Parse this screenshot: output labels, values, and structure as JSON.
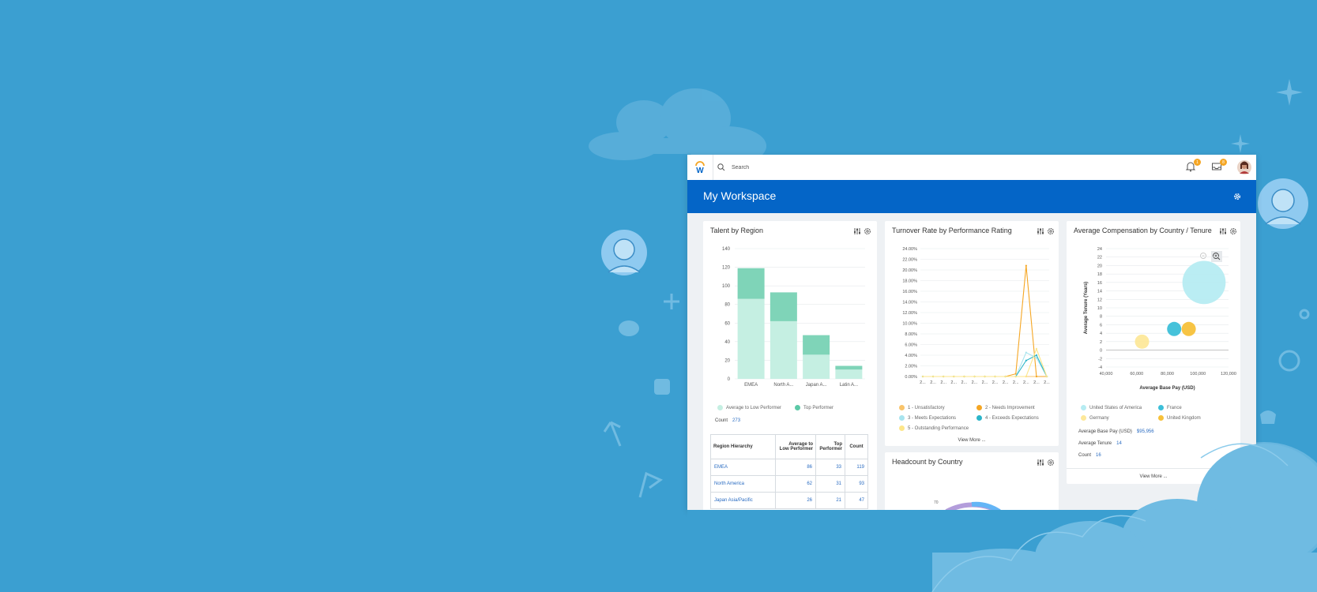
{
  "topbar": {
    "search_placeholder": "Search",
    "notifications_count": "1",
    "inbox_count": "8"
  },
  "header": {
    "title": "My Workspace"
  },
  "talent_card": {
    "title": "Talent by Region",
    "legend": [
      "Average to Low Performer",
      "Top Performer"
    ],
    "count_label": "Count",
    "count_value": "273",
    "table": {
      "headers": [
        "Region Hierarchy",
        "Average to Low Performer",
        "Top Performer",
        "Count"
      ],
      "rows": [
        [
          "EMEA",
          "86",
          "33",
          "119"
        ],
        [
          "North America",
          "62",
          "31",
          "93"
        ],
        [
          "Japan Asia/Pacific",
          "26",
          "21",
          "47"
        ]
      ]
    }
  },
  "turnover_card": {
    "title": "Turnover Rate by Performance Rating",
    "legend": [
      "1 - Unsatisfactory",
      "2 - Needs Improvement",
      "3 - Meets Expectations",
      "4 - Exceeds Expectations",
      "5 - Outstanding Performance"
    ],
    "view_more": "View More ..."
  },
  "headcount_card": {
    "title": "Headcount by Country",
    "tick": "70"
  },
  "comp_card": {
    "title": "Average Compensation by Country / Tenure",
    "legend": [
      "United States of America",
      "France",
      "Germany",
      "United Kingdom"
    ],
    "stats": [
      {
        "label": "Average Base Pay (USD)",
        "value": "$95,956"
      },
      {
        "label": "Average Tenure",
        "value": "14"
      },
      {
        "label": "Count",
        "value": "16"
      }
    ],
    "view_more": "View More ..."
  },
  "colors": {
    "background": "#3b9fd1",
    "header": "#0465c7",
    "low_performer": "#c5efe2",
    "top_performer": "#7fd4b8",
    "usa": "#b6ecf2",
    "france": "#3cbfd8",
    "germany": "#fde89a",
    "uk": "#f7c13a"
  },
  "chart_data": [
    {
      "type": "bar",
      "title": "Talent by Region",
      "categories": [
        "EMEA",
        "North A...",
        "Japan A...",
        "Latin A..."
      ],
      "series": [
        {
          "name": "Average to Low Performer",
          "values": [
            86,
            62,
            26,
            10
          ]
        },
        {
          "name": "Top Performer",
          "values": [
            33,
            31,
            21,
            4
          ]
        }
      ],
      "stacked": true,
      "ylim": [
        0,
        140
      ],
      "yticks": [
        "0",
        "20",
        "40",
        "60",
        "80",
        "100",
        "120",
        "140"
      ]
    },
    {
      "type": "line",
      "title": "Turnover Rate by Performance Rating",
      "x": [
        "2...",
        "2...",
        "2...",
        "2...",
        "2...",
        "2...",
        "2...",
        "2...",
        "2...",
        "2...",
        "2...",
        "2...",
        "2..."
      ],
      "yticks": [
        "0.00%",
        "2.00%",
        "4.00%",
        "6.00%",
        "8.00%",
        "10.00%",
        "12.00%",
        "14.00%",
        "16.00%",
        "18.00%",
        "20.00%",
        "22.00%",
        "24.00%"
      ],
      "ylim": [
        0,
        24
      ],
      "series": [
        {
          "name": "1 - Unsatisfactory",
          "color": "#f9c46b",
          "values": [
            0,
            0,
            0,
            0,
            0,
            0,
            0,
            0,
            0,
            0,
            0,
            0,
            0
          ]
        },
        {
          "name": "2 - Needs Improvement",
          "color": "#f5a623",
          "values": [
            0,
            0,
            0,
            0,
            0,
            0,
            0,
            0,
            0,
            0.5,
            20.8,
            0,
            0
          ]
        },
        {
          "name": "3 - Meets Expectations",
          "color": "#a8e4ee",
          "values": [
            0,
            0,
            0,
            0,
            0,
            0,
            0,
            0,
            0,
            0,
            4.5,
            3.5,
            0
          ]
        },
        {
          "name": "4 - Exceeds Expectations",
          "color": "#2bb5c9",
          "values": [
            0,
            0,
            0,
            0,
            0,
            0,
            0,
            0,
            0,
            0,
            3.0,
            4.0,
            0
          ]
        },
        {
          "name": "5 - Outstanding Performance",
          "color": "#fde68a",
          "values": [
            0,
            0,
            0,
            0,
            0,
            0,
            0,
            0,
            0,
            0,
            0,
            5.2,
            0
          ]
        }
      ]
    },
    {
      "type": "scatter",
      "title": "Average Compensation by Country / Tenure",
      "xlabel": "Average Base Pay (USD)",
      "ylabel": "Average Tenure (Years)",
      "xticks": [
        "40,000",
        "60,000",
        "80,000",
        "100,000",
        "120,000"
      ],
      "xlim": [
        40000,
        120000
      ],
      "yticks": [
        "-4",
        "-2",
        "0",
        "2",
        "4",
        "6",
        "8",
        "10",
        "12",
        "14",
        "16",
        "18",
        "20",
        "22",
        "24"
      ],
      "ylim": [
        -4,
        24
      ],
      "points": [
        {
          "name": "United States of America",
          "x": 104000,
          "y": 16,
          "size": 3.2
        },
        {
          "name": "France",
          "x": 84500,
          "y": 5,
          "size": 1
        },
        {
          "name": "United Kingdom",
          "x": 94000,
          "y": 5,
          "size": 1
        },
        {
          "name": "Germany",
          "x": 63500,
          "y": 2,
          "size": 1
        }
      ]
    }
  ]
}
